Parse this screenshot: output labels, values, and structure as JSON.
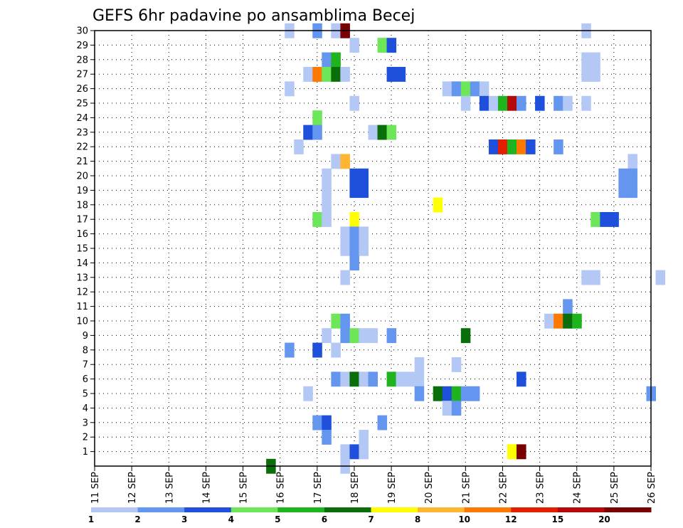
{
  "chart_data": {
    "type": "heatmap",
    "title": "GEFS 6hr padavine po ansamblima Becej",
    "xlabel": "",
    "ylabel": "",
    "x_ticks": [
      "11 SEP",
      "12 SEP",
      "13 SEP",
      "14 SEP",
      "15 SEP",
      "16 SEP",
      "17 SEP",
      "18 SEP",
      "19 SEP",
      "20 SEP",
      "21 SEP",
      "22 SEP",
      "23 SEP",
      "24 SEP",
      "25 SEP",
      "26 SEP"
    ],
    "x_range_days": [
      11,
      26
    ],
    "y_ticks": [
      "1",
      "2",
      "3",
      "4",
      "5",
      "6",
      "7",
      "8",
      "9",
      "10",
      "11",
      "12",
      "13",
      "14",
      "15",
      "16",
      "17",
      "18",
      "19",
      "20",
      "21",
      "22",
      "23",
      "24",
      "25",
      "26",
      "27",
      "28",
      "29",
      "30"
    ],
    "y_range": [
      0,
      30
    ],
    "grid": true,
    "colorbar": {
      "labels": [
        "1",
        "2",
        "3",
        "4",
        "5",
        "6",
        "7",
        "8",
        "10",
        "12",
        "15",
        "20"
      ],
      "colors": [
        "#b4c8f5",
        "#6496f0",
        "#1e50dc",
        "#6ee65a",
        "#1eb41e",
        "#0a6e0a",
        "#ffff00",
        "#ffb432",
        "#ff7800",
        "#e61e00",
        "#b40a0a",
        "#780000"
      ]
    },
    "cells": [
      {
        "day": 16.25,
        "member": 30,
        "class": 0
      },
      {
        "day": 17.0,
        "member": 30,
        "class": 1
      },
      {
        "day": 17.5,
        "member": 30,
        "class": 0
      },
      {
        "day": 17.75,
        "member": 30,
        "class": 11
      },
      {
        "day": 24.25,
        "member": 30,
        "class": 0
      },
      {
        "day": 18.0,
        "member": 29,
        "class": 0
      },
      {
        "day": 18.75,
        "member": 29,
        "class": 3
      },
      {
        "day": 19.0,
        "member": 29,
        "class": 2
      },
      {
        "day": 17.25,
        "member": 28,
        "class": 1
      },
      {
        "day": 17.5,
        "member": 28,
        "class": 4
      },
      {
        "day": 24.25,
        "member": 28,
        "class": 0
      },
      {
        "day": 24.5,
        "member": 28,
        "class": 0
      },
      {
        "day": 16.75,
        "member": 27,
        "class": 0
      },
      {
        "day": 17.0,
        "member": 27,
        "class": 8
      },
      {
        "day": 17.25,
        "member": 27,
        "class": 3
      },
      {
        "day": 17.5,
        "member": 27,
        "class": 5
      },
      {
        "day": 17.75,
        "member": 27,
        "class": 0
      },
      {
        "day": 19.0,
        "member": 27,
        "class": 2
      },
      {
        "day": 19.25,
        "member": 27,
        "class": 2
      },
      {
        "day": 24.25,
        "member": 27,
        "class": 0
      },
      {
        "day": 24.5,
        "member": 27,
        "class": 0
      },
      {
        "day": 16.25,
        "member": 26,
        "class": 0
      },
      {
        "day": 20.5,
        "member": 26,
        "class": 0
      },
      {
        "day": 20.75,
        "member": 26,
        "class": 1
      },
      {
        "day": 21.0,
        "member": 26,
        "class": 3
      },
      {
        "day": 21.25,
        "member": 26,
        "class": 1
      },
      {
        "day": 21.5,
        "member": 26,
        "class": 0
      },
      {
        "day": 18.0,
        "member": 25,
        "class": 0
      },
      {
        "day": 21.0,
        "member": 25,
        "class": 0
      },
      {
        "day": 21.5,
        "member": 25,
        "class": 2
      },
      {
        "day": 21.75,
        "member": 25,
        "class": 0
      },
      {
        "day": 22.0,
        "member": 25,
        "class": 4
      },
      {
        "day": 22.25,
        "member": 25,
        "class": 10
      },
      {
        "day": 22.5,
        "member": 25,
        "class": 1
      },
      {
        "day": 23.0,
        "member": 25,
        "class": 2
      },
      {
        "day": 23.5,
        "member": 25,
        "class": 1
      },
      {
        "day": 23.75,
        "member": 25,
        "class": 0
      },
      {
        "day": 24.25,
        "member": 25,
        "class": 0
      },
      {
        "day": 17.0,
        "member": 24,
        "class": 3
      },
      {
        "day": 16.75,
        "member": 23,
        "class": 2
      },
      {
        "day": 17.0,
        "member": 23,
        "class": 1
      },
      {
        "day": 18.5,
        "member": 23,
        "class": 0
      },
      {
        "day": 18.75,
        "member": 23,
        "class": 5
      },
      {
        "day": 19.0,
        "member": 23,
        "class": 3
      },
      {
        "day": 16.5,
        "member": 22,
        "class": 0
      },
      {
        "day": 21.75,
        "member": 22,
        "class": 2
      },
      {
        "day": 22.0,
        "member": 22,
        "class": 9
      },
      {
        "day": 22.25,
        "member": 22,
        "class": 4
      },
      {
        "day": 22.5,
        "member": 22,
        "class": 8
      },
      {
        "day": 22.75,
        "member": 22,
        "class": 2
      },
      {
        "day": 23.5,
        "member": 22,
        "class": 1
      },
      {
        "day": 17.5,
        "member": 21,
        "class": 0
      },
      {
        "day": 17.75,
        "member": 21,
        "class": 7
      },
      {
        "day": 25.5,
        "member": 21,
        "class": 0
      },
      {
        "day": 17.25,
        "member": 20,
        "class": 0
      },
      {
        "day": 18.0,
        "member": 20,
        "class": 2
      },
      {
        "day": 18.25,
        "member": 20,
        "class": 2
      },
      {
        "day": 25.25,
        "member": 20,
        "class": 1
      },
      {
        "day": 25.5,
        "member": 20,
        "class": 1
      },
      {
        "day": 17.25,
        "member": 19,
        "class": 0
      },
      {
        "day": 18.0,
        "member": 19,
        "class": 2
      },
      {
        "day": 18.25,
        "member": 19,
        "class": 2
      },
      {
        "day": 25.25,
        "member": 19,
        "class": 1
      },
      {
        "day": 25.5,
        "member": 19,
        "class": 1
      },
      {
        "day": 17.25,
        "member": 18,
        "class": 0
      },
      {
        "day": 20.25,
        "member": 18,
        "class": 6
      },
      {
        "day": 17.0,
        "member": 17,
        "class": 3
      },
      {
        "day": 17.25,
        "member": 17,
        "class": 0
      },
      {
        "day": 18.0,
        "member": 17,
        "class": 6
      },
      {
        "day": 24.5,
        "member": 17,
        "class": 3
      },
      {
        "day": 24.75,
        "member": 17,
        "class": 2
      },
      {
        "day": 25.0,
        "member": 17,
        "class": 2
      },
      {
        "day": 17.75,
        "member": 16,
        "class": 0
      },
      {
        "day": 18.0,
        "member": 16,
        "class": 1
      },
      {
        "day": 18.25,
        "member": 16,
        "class": 0
      },
      {
        "day": 17.75,
        "member": 15,
        "class": 0
      },
      {
        "day": 18.0,
        "member": 15,
        "class": 1
      },
      {
        "day": 18.25,
        "member": 15,
        "class": 0
      },
      {
        "day": 18.0,
        "member": 14,
        "class": 1
      },
      {
        "day": 17.75,
        "member": 13,
        "class": 0
      },
      {
        "day": 24.25,
        "member": 13,
        "class": 0
      },
      {
        "day": 24.5,
        "member": 13,
        "class": 0
      },
      {
        "day": 26.25,
        "member": 13,
        "class": 0
      },
      {
        "day": 23.75,
        "member": 11,
        "class": 1
      },
      {
        "day": 17.5,
        "member": 10,
        "class": 3
      },
      {
        "day": 17.75,
        "member": 10,
        "class": 1
      },
      {
        "day": 23.25,
        "member": 10,
        "class": 0
      },
      {
        "day": 23.5,
        "member": 10,
        "class": 8
      },
      {
        "day": 23.75,
        "member": 10,
        "class": 5
      },
      {
        "day": 24.0,
        "member": 10,
        "class": 4
      },
      {
        "day": 17.25,
        "member": 9,
        "class": 0
      },
      {
        "day": 17.75,
        "member": 9,
        "class": 1
      },
      {
        "day": 18.0,
        "member": 9,
        "class": 3
      },
      {
        "day": 18.25,
        "member": 9,
        "class": 0
      },
      {
        "day": 18.5,
        "member": 9,
        "class": 0
      },
      {
        "day": 19.0,
        "member": 9,
        "class": 1
      },
      {
        "day": 21.0,
        "member": 9,
        "class": 5
      },
      {
        "day": 16.25,
        "member": 8,
        "class": 1
      },
      {
        "day": 17.0,
        "member": 8,
        "class": 2
      },
      {
        "day": 17.5,
        "member": 8,
        "class": 0
      },
      {
        "day": 19.75,
        "member": 7,
        "class": 0
      },
      {
        "day": 20.75,
        "member": 7,
        "class": 0
      },
      {
        "day": 17.5,
        "member": 6,
        "class": 1
      },
      {
        "day": 17.75,
        "member": 6,
        "class": 0
      },
      {
        "day": 18.0,
        "member": 6,
        "class": 5
      },
      {
        "day": 18.25,
        "member": 6,
        "class": 0
      },
      {
        "day": 18.5,
        "member": 6,
        "class": 1
      },
      {
        "day": 19.0,
        "member": 6,
        "class": 4
      },
      {
        "day": 19.25,
        "member": 6,
        "class": 0
      },
      {
        "day": 19.5,
        "member": 6,
        "class": 0
      },
      {
        "day": 19.75,
        "member": 6,
        "class": 0
      },
      {
        "day": 22.5,
        "member": 6,
        "class": 2
      },
      {
        "day": 16.75,
        "member": 5,
        "class": 0
      },
      {
        "day": 19.75,
        "member": 5,
        "class": 1
      },
      {
        "day": 20.25,
        "member": 5,
        "class": 5
      },
      {
        "day": 20.5,
        "member": 5,
        "class": 2
      },
      {
        "day": 20.75,
        "member": 5,
        "class": 4
      },
      {
        "day": 21.0,
        "member": 5,
        "class": 1
      },
      {
        "day": 21.25,
        "member": 5,
        "class": 1
      },
      {
        "day": 26.0,
        "member": 5,
        "class": 1
      },
      {
        "day": 20.5,
        "member": 4,
        "class": 0
      },
      {
        "day": 20.75,
        "member": 4,
        "class": 1
      },
      {
        "day": 17.0,
        "member": 3,
        "class": 1
      },
      {
        "day": 17.25,
        "member": 3,
        "class": 2
      },
      {
        "day": 18.75,
        "member": 3,
        "class": 1
      },
      {
        "day": 17.25,
        "member": 2,
        "class": 1
      },
      {
        "day": 18.25,
        "member": 2,
        "class": 0
      },
      {
        "day": 17.75,
        "member": 1,
        "class": 0
      },
      {
        "day": 18.0,
        "member": 1,
        "class": 2
      },
      {
        "day": 18.25,
        "member": 1,
        "class": 0
      },
      {
        "day": 22.25,
        "member": 1,
        "class": 6
      },
      {
        "day": 22.5,
        "member": 1,
        "class": 11
      },
      {
        "day": 15.75,
        "member": 0,
        "class": 5
      },
      {
        "day": 17.75,
        "member": 0,
        "class": 0
      }
    ]
  }
}
